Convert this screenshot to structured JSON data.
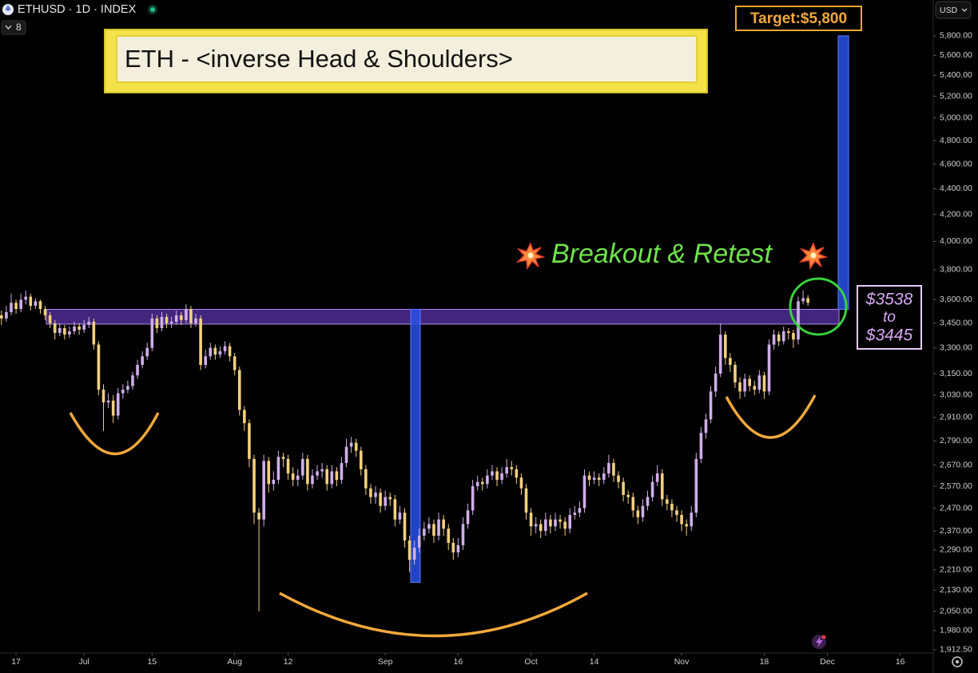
{
  "chart_data": {
    "type": "candlestick",
    "symbol": "ETHUSD · 1D · INDEX",
    "collapsed_count": 8,
    "currency": "USD",
    "log_scale": true,
    "grid": false,
    "up_color": "#cfaeea",
    "down_color": "#f3d07e",
    "xlim": [
      -3.3,
      188.3
    ],
    "xticks": [
      {
        "value": 0,
        "label": "17"
      },
      {
        "value": 14,
        "label": "Jul"
      },
      {
        "value": 28,
        "label": "15"
      },
      {
        "value": 45,
        "label": "Aug"
      },
      {
        "value": 56,
        "label": "12"
      },
      {
        "value": 76,
        "label": "Sep"
      },
      {
        "value": 91,
        "label": "16"
      },
      {
        "value": 106,
        "label": "Oct"
      },
      {
        "value": 119,
        "label": "14"
      },
      {
        "value": 137,
        "label": "Nov"
      },
      {
        "value": 154,
        "label": "18"
      },
      {
        "value": 167,
        "label": "Dec"
      },
      {
        "value": 182,
        "label": "16"
      }
    ],
    "ylim": [
      1901,
      6188
    ],
    "yticks": [
      {
        "value": 5800,
        "label": "5,800.00"
      },
      {
        "value": 5600,
        "label": "5,600.00"
      },
      {
        "value": 5400,
        "label": "5,400.00"
      },
      {
        "value": 5200,
        "label": "5,200.00"
      },
      {
        "value": 5000,
        "label": "5,000.00"
      },
      {
        "value": 4800,
        "label": "4,800.00"
      },
      {
        "value": 4600,
        "label": "4,600.00"
      },
      {
        "value": 4400,
        "label": "4,400.00"
      },
      {
        "value": 4200,
        "label": "4,200.00"
      },
      {
        "value": 4000,
        "label": "4,000.00"
      },
      {
        "value": 3800,
        "label": "3,800.00"
      },
      {
        "value": 3600,
        "label": "3,600.00"
      },
      {
        "value": 3450,
        "label": "3,450.00"
      },
      {
        "value": 3300,
        "label": "3,300.00"
      },
      {
        "value": 3150,
        "label": "3,150.00"
      },
      {
        "value": 3030,
        "label": "3,030.00"
      },
      {
        "value": 2910,
        "label": "2,910.00"
      },
      {
        "value": 2790,
        "label": "2,790.00"
      },
      {
        "value": 2670,
        "label": "2,670.00"
      },
      {
        "value": 2570,
        "label": "2,570.00"
      },
      {
        "value": 2470,
        "label": "2,470.00"
      },
      {
        "value": 2370,
        "label": "2,370.00"
      },
      {
        "value": 2290,
        "label": "2,290.00"
      },
      {
        "value": 2210,
        "label": "2,210.00"
      },
      {
        "value": 2130,
        "label": "2,130.00"
      },
      {
        "value": 2050,
        "label": "2,050.00"
      },
      {
        "value": 1980,
        "label": "1,980.00"
      },
      {
        "value": 1912.5,
        "label": "1,912.50"
      }
    ],
    "x": [
      -3,
      -2,
      -1,
      0,
      1,
      2,
      3,
      4,
      5,
      6,
      7,
      8,
      9,
      10,
      11,
      12,
      13,
      14,
      15,
      16,
      17,
      18,
      19,
      20,
      21,
      22,
      23,
      24,
      25,
      26,
      27,
      28,
      29,
      30,
      31,
      32,
      33,
      34,
      35,
      36,
      37,
      38,
      39,
      40,
      41,
      42,
      43,
      44,
      45,
      46,
      47,
      48,
      49,
      50,
      51,
      52,
      53,
      54,
      55,
      56,
      57,
      58,
      59,
      60,
      61,
      62,
      63,
      64,
      65,
      66,
      67,
      68,
      69,
      70,
      71,
      72,
      73,
      74,
      75,
      76,
      77,
      78,
      79,
      80,
      81,
      82,
      83,
      84,
      85,
      86,
      87,
      88,
      89,
      90,
      91,
      92,
      93,
      94,
      95,
      96,
      97,
      98,
      99,
      100,
      101,
      102,
      103,
      104,
      105,
      106,
      107,
      108,
      109,
      110,
      111,
      112,
      113,
      114,
      115,
      116,
      117,
      118,
      119,
      120,
      121,
      122,
      123,
      124,
      125,
      126,
      127,
      128,
      129,
      130,
      131,
      132,
      133,
      134,
      135,
      136,
      137,
      138,
      139,
      140,
      141,
      142,
      143,
      144,
      145,
      146,
      147,
      148,
      149,
      150,
      151,
      152,
      153,
      154,
      155,
      156,
      157,
      158,
      159,
      160,
      161,
      162,
      163
    ],
    "open": [
      3500,
      3480,
      3520,
      3580,
      3540,
      3600,
      3620,
      3560,
      3590,
      3540,
      3500,
      3450,
      3390,
      3420,
      3380,
      3400,
      3430,
      3410,
      3440,
      3460,
      3320,
      3060,
      2990,
      3000,
      2920,
      3040,
      3060,
      3080,
      3140,
      3200,
      3250,
      3300,
      3480,
      3420,
      3490,
      3450,
      3460,
      3500,
      3470,
      3540,
      3450,
      3480,
      3200,
      3250,
      3300,
      3260,
      3280,
      3310,
      3250,
      3170,
      2950,
      2880,
      2700,
      2450,
      2420,
      2690,
      2580,
      2600,
      2710,
      2700,
      2630,
      2600,
      2620,
      2700,
      2580,
      2620,
      2640,
      2650,
      2580,
      2640,
      2600,
      2680,
      2760,
      2780,
      2740,
      2650,
      2560,
      2520,
      2540,
      2480,
      2520,
      2510,
      2420,
      2450,
      2330,
      2250,
      2300,
      2350,
      2380,
      2400,
      2350,
      2420,
      2380,
      2320,
      2280,
      2310,
      2400,
      2460,
      2570,
      2590,
      2580,
      2620,
      2640,
      2600,
      2630,
      2660,
      2650,
      2610,
      2560,
      2450,
      2390,
      2400,
      2370,
      2420,
      2390,
      2420,
      2410,
      2380,
      2440,
      2450,
      2470,
      2620,
      2600,
      2610,
      2600,
      2630,
      2680,
      2620,
      2590,
      2530,
      2520,
      2460,
      2430,
      2480,
      2520,
      2590,
      2630,
      2510,
      2490,
      2460,
      2440,
      2400,
      2390,
      2450,
      2700,
      2830,
      2900,
      3050,
      3150,
      3380,
      3240,
      3200,
      3100,
      3050,
      3120,
      3080,
      3060,
      3140,
      3050,
      3320,
      3380,
      3340,
      3400,
      3390,
      3350,
      3590,
      3610
    ],
    "high": [
      3530,
      3560,
      3640,
      3600,
      3640,
      3660,
      3640,
      3610,
      3600,
      3560,
      3520,
      3470,
      3450,
      3440,
      3430,
      3460,
      3450,
      3470,
      3490,
      3480,
      3340,
      3090,
      3040,
      3030,
      3070,
      3090,
      3110,
      3160,
      3230,
      3280,
      3330,
      3510,
      3500,
      3520,
      3510,
      3490,
      3530,
      3520,
      3570,
      3560,
      3510,
      3500,
      3290,
      3330,
      3320,
      3310,
      3340,
      3330,
      3270,
      3190,
      2970,
      2900,
      2720,
      2470,
      2720,
      2710,
      2640,
      2740,
      2730,
      2720,
      2660,
      2650,
      2730,
      2720,
      2650,
      2670,
      2680,
      2670,
      2670,
      2660,
      2710,
      2800,
      2810,
      2800,
      2760,
      2670,
      2580,
      2570,
      2560,
      2550,
      2540,
      2530,
      2480,
      2470,
      2350,
      2330,
      2380,
      2410,
      2430,
      2420,
      2450,
      2440,
      2400,
      2340,
      2340,
      2430,
      2490,
      2600,
      2620,
      2610,
      2650,
      2670,
      2660,
      2660,
      2700,
      2690,
      2670,
      2630,
      2580,
      2470,
      2430,
      2420,
      2450,
      2440,
      2450,
      2440,
      2430,
      2470,
      2480,
      2500,
      2650,
      2640,
      2640,
      2630,
      2660,
      2720,
      2700,
      2640,
      2610,
      2550,
      2540,
      2480,
      2510,
      2550,
      2620,
      2670,
      2650,
      2530,
      2510,
      2480,
      2460,
      2420,
      2480,
      2730,
      2860,
      2930,
      3080,
      3190,
      3450,
      3400,
      3270,
      3220,
      3130,
      3150,
      3140,
      3110,
      3170,
      3160,
      3350,
      3410,
      3400,
      3430,
      3420,
      3410,
      3620,
      3660,
      3630
    ],
    "low": [
      3440,
      3460,
      3500,
      3510,
      3520,
      3570,
      3530,
      3540,
      3510,
      3470,
      3420,
      3350,
      3370,
      3350,
      3360,
      3380,
      3380,
      3390,
      3420,
      3290,
      3030,
      2840,
      2960,
      2880,
      2900,
      3010,
      3040,
      3060,
      3120,
      3180,
      3230,
      3280,
      3390,
      3400,
      3420,
      3420,
      3440,
      3440,
      3450,
      3420,
      3430,
      3170,
      3180,
      3230,
      3230,
      3240,
      3260,
      3220,
      3140,
      2920,
      2840,
      2660,
      2400,
      2050,
      2390,
      2540,
      2550,
      2580,
      2660,
      2600,
      2570,
      2570,
      2600,
      2550,
      2560,
      2600,
      2610,
      2550,
      2560,
      2570,
      2580,
      2660,
      2730,
      2710,
      2620,
      2530,
      2490,
      2490,
      2450,
      2460,
      2480,
      2390,
      2400,
      2300,
      2200,
      2230,
      2280,
      2330,
      2360,
      2320,
      2330,
      2350,
      2290,
      2250,
      2260,
      2290,
      2380,
      2440,
      2550,
      2550,
      2560,
      2600,
      2570,
      2580,
      2610,
      2620,
      2580,
      2530,
      2420,
      2350,
      2360,
      2340,
      2350,
      2360,
      2370,
      2380,
      2350,
      2360,
      2420,
      2430,
      2450,
      2570,
      2580,
      2570,
      2580,
      2610,
      2590,
      2560,
      2500,
      2490,
      2430,
      2400,
      2410,
      2460,
      2500,
      2570,
      2480,
      2460,
      2430,
      2410,
      2370,
      2350,
      2370,
      2430,
      2680,
      2800,
      2880,
      3020,
      3130,
      3200,
      3160,
      3070,
      3010,
      3020,
      3050,
      3030,
      3040,
      3010,
      3030,
      3290,
      3310,
      3320,
      3350,
      3300,
      3320,
      3570,
      3560
    ],
    "close": [
      3480,
      3520,
      3580,
      3540,
      3600,
      3620,
      3560,
      3590,
      3540,
      3500,
      3450,
      3390,
      3420,
      3380,
      3400,
      3430,
      3410,
      3440,
      3460,
      3320,
      3060,
      2990,
      3000,
      2920,
      3040,
      3060,
      3080,
      3140,
      3200,
      3250,
      3300,
      3480,
      3420,
      3490,
      3450,
      3460,
      3500,
      3470,
      3540,
      3450,
      3480,
      3200,
      3250,
      3300,
      3260,
      3280,
      3310,
      3250,
      3170,
      2950,
      2880,
      2700,
      2450,
      2420,
      2690,
      2580,
      2600,
      2710,
      2700,
      2630,
      2600,
      2620,
      2700,
      2580,
      2620,
      2640,
      2650,
      2580,
      2640,
      2600,
      2680,
      2760,
      2780,
      2740,
      2650,
      2560,
      2520,
      2540,
      2480,
      2520,
      2510,
      2420,
      2450,
      2330,
      2250,
      2300,
      2350,
      2380,
      2400,
      2350,
      2420,
      2380,
      2320,
      2280,
      2310,
      2400,
      2460,
      2570,
      2590,
      2580,
      2620,
      2640,
      2600,
      2630,
      2660,
      2650,
      2610,
      2560,
      2450,
      2390,
      2400,
      2370,
      2420,
      2390,
      2420,
      2410,
      2380,
      2440,
      2450,
      2470,
      2620,
      2600,
      2610,
      2600,
      2630,
      2680,
      2620,
      2590,
      2530,
      2520,
      2460,
      2430,
      2480,
      2520,
      2590,
      2630,
      2510,
      2490,
      2460,
      2440,
      2400,
      2390,
      2450,
      2700,
      2830,
      2900,
      3050,
      3150,
      3380,
      3240,
      3200,
      3100,
      3050,
      3120,
      3080,
      3060,
      3140,
      3050,
      3320,
      3380,
      3340,
      3400,
      3390,
      3350,
      3590,
      3610,
      3580
    ],
    "annotations": {
      "title": "ETH - <inverse Head & Shoulders>",
      "breakout": "Breakout & Retest",
      "target": {
        "value": 5800,
        "label": "Target:$5,800"
      },
      "zone": {
        "values": [
          3538,
          3445
        ],
        "value_labels": [
          "$3538",
          "$3445"
        ],
        "joiner": "to"
      },
      "head_depth": [
        3538,
        2160
      ]
    }
  }
}
